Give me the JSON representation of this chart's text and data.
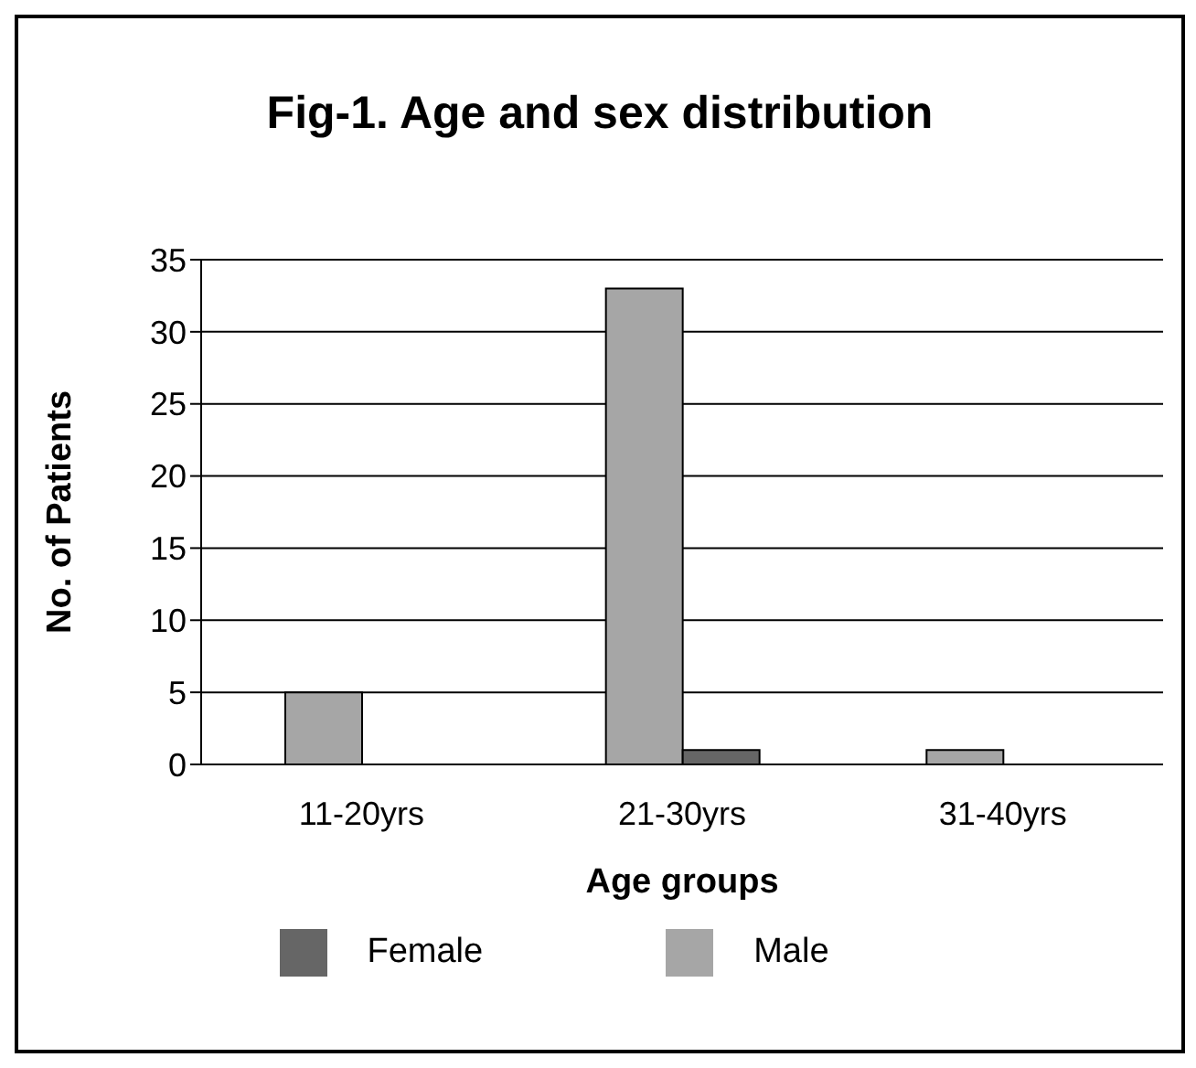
{
  "chart_data": {
    "type": "bar",
    "title": "Fig-1. Age and sex distribution",
    "xlabel": "Age groups",
    "ylabel": "No. of Patients",
    "categories": [
      "11-20yrs",
      "21-30yrs",
      "31-40yrs"
    ],
    "series": [
      {
        "name": "Male",
        "color": "#a6a6a6",
        "values": [
          5,
          33,
          1
        ]
      },
      {
        "name": "Female",
        "color": "#666666",
        "values": [
          0,
          1,
          0
        ]
      }
    ],
    "ylim": [
      0,
      35
    ],
    "yticks": [
      0,
      5,
      10,
      15,
      20,
      25,
      30,
      35
    ],
    "grid": "y",
    "legend": "bottom"
  }
}
